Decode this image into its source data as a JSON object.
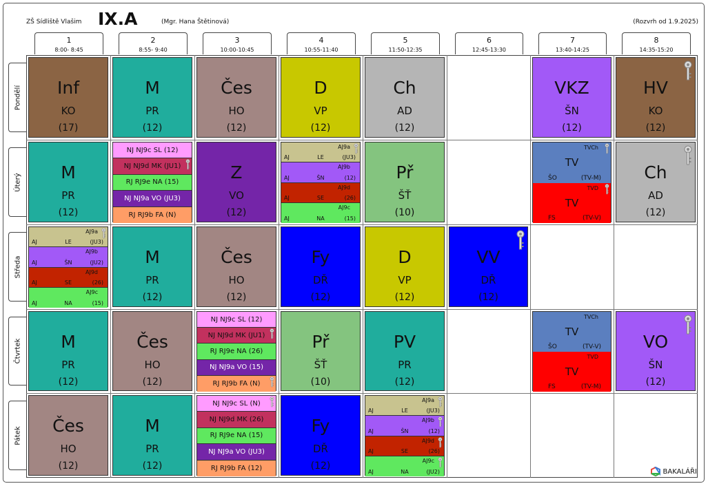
{
  "header": {
    "school": "ZŠ Sídliště Vlašim",
    "class_name": "IX.A",
    "teacher": "(Mgr. Hana Štětinová)",
    "valid_from": "(Rozvrh od 1.9.2025)"
  },
  "periods": [
    {
      "num": "1",
      "time": "8:00- 8:45"
    },
    {
      "num": "2",
      "time": "8:55- 9:40"
    },
    {
      "num": "3",
      "time": "10:00-10:45"
    },
    {
      "num": "4",
      "time": "10:55-11:40"
    },
    {
      "num": "5",
      "time": "11:50-12:35"
    },
    {
      "num": "6",
      "time": "12:45-13:30"
    },
    {
      "num": "7",
      "time": "13:40-14:25"
    },
    {
      "num": "8",
      "time": "14:35-15:20"
    }
  ],
  "days": [
    "Pondělí",
    "Úterý",
    "Středa",
    "Čtvrtek",
    "Pátek"
  ],
  "colors": {
    "inf": "#8b6444",
    "m": "#20ad9d",
    "ces": "#a28683",
    "d": "#c8c800",
    "ch": "#b5b5b5",
    "vkz": "#a259f7",
    "z": "#7425a8",
    "pr": "#84c47f",
    "fy": "#0000ff",
    "vv": "#0000ff",
    "tvch": "#5b7fbf",
    "tvd": "#ff0000",
    "aj9a": "#c8c38f",
    "aj9b": "#a259f7",
    "aj9d": "#c22300",
    "aj9c": "#5fe85f",
    "nj9c": "#ff9bff",
    "nj9d": "#c2315e",
    "rj9e": "#5fe85f",
    "nj9a": "#7425a8",
    "rj9b": "#ff9d66"
  },
  "lessons": {
    "po1": {
      "subject": "Inf",
      "teacher": "KO",
      "room": "(17)"
    },
    "po2": {
      "subject": "M",
      "teacher": "PR",
      "room": "(12)"
    },
    "po3": {
      "subject": "Čes",
      "teacher": "HO",
      "room": "(12)"
    },
    "po4": {
      "subject": "D",
      "teacher": "VP",
      "room": "(12)"
    },
    "po5": {
      "subject": "Ch",
      "teacher": "AD",
      "room": "(12)"
    },
    "po7": {
      "subject": "VKZ",
      "teacher": "ŠN",
      "room": "(12)"
    },
    "po8": {
      "subject": "HV",
      "teacher": "KO",
      "room": "(12)"
    },
    "ut1": {
      "subject": "M",
      "teacher": "PR",
      "room": "(12)"
    },
    "ut3": {
      "subject": "Z",
      "teacher": "VO",
      "room": "(12)"
    },
    "ut5": {
      "subject": "Př",
      "teacher": "ŠŤ",
      "room": "(10)"
    },
    "ut8": {
      "subject": "Ch",
      "teacher": "AD",
      "room": "(12)"
    },
    "st2": {
      "subject": "M",
      "teacher": "PR",
      "room": "(12)"
    },
    "st3": {
      "subject": "Čes",
      "teacher": "HO",
      "room": "(12)"
    },
    "st4": {
      "subject": "Fy",
      "teacher": "DŘ",
      "room": "(12)"
    },
    "st5": {
      "subject": "D",
      "teacher": "VP",
      "room": "(12)"
    },
    "st6": {
      "subject": "VV",
      "teacher": "DŘ",
      "room": "(12)"
    },
    "ct1": {
      "subject": "M",
      "teacher": "PR",
      "room": "(12)"
    },
    "ct2": {
      "subject": "Čes",
      "teacher": "HO",
      "room": "(12)"
    },
    "ct4": {
      "subject": "Př",
      "teacher": "ŠŤ",
      "room": "(10)"
    },
    "ct5": {
      "subject": "PV",
      "teacher": "PR",
      "room": "(12)"
    },
    "ct8": {
      "subject": "VO",
      "teacher": "ŠN",
      "room": "(12)"
    },
    "pa1": {
      "subject": "Čes",
      "teacher": "HO",
      "room": "(12)"
    },
    "pa2": {
      "subject": "M",
      "teacher": "PR",
      "room": "(12)"
    },
    "pa4": {
      "subject": "Fy",
      "teacher": "DŘ",
      "room": "(12)"
    }
  },
  "lang_ut2": [
    "NJ NJ9c SL (12)",
    "NJ NJ9d MK (JU1)",
    "RJ RJ9e NA (15)",
    "NJ NJ9a VO (JU3)",
    "RJ RJ9b FA (N)"
  ],
  "lang_ct3": [
    "NJ NJ9c SL (12)",
    "NJ NJ9d MK (JU1)",
    "RJ RJ9e NA (26)",
    "NJ NJ9a VO (15)",
    "RJ RJ9b FA (N)"
  ],
  "lang_pa3": [
    "NJ NJ9c SL (N)",
    "NJ NJ9d MK (26)",
    "RJ RJ9e NA (15)",
    "NJ NJ9a VO (JU3)",
    "RJ RJ9b FA (12)"
  ],
  "aj_ut4": [
    {
      "group": "AJ9a",
      "subject": "AJ",
      "teacher": "LE",
      "room": "(JU3)"
    },
    {
      "group": "AJ9b",
      "subject": "AJ",
      "teacher": "ŠN",
      "room": "(12)"
    },
    {
      "group": "AJ9d",
      "subject": "AJ",
      "teacher": "SE",
      "room": "(26)"
    },
    {
      "group": "AJ9c",
      "subject": "AJ",
      "teacher": "NA",
      "room": "(15)"
    }
  ],
  "aj_st1": [
    {
      "group": "AJ9a",
      "subject": "AJ",
      "teacher": "LE",
      "room": "(JU3)"
    },
    {
      "group": "AJ9b",
      "subject": "AJ",
      "teacher": "ŠN",
      "room": "(JU2)"
    },
    {
      "group": "AJ9d",
      "subject": "AJ",
      "teacher": "SE",
      "room": "(26)"
    },
    {
      "group": "AJ9c",
      "subject": "AJ",
      "teacher": "NA",
      "room": "(15)"
    }
  ],
  "aj_pa5": [
    {
      "group": "AJ9a",
      "subject": "AJ",
      "teacher": "LE",
      "room": "(JU3)"
    },
    {
      "group": "AJ9b",
      "subject": "AJ",
      "teacher": "ŠN",
      "room": "(12)"
    },
    {
      "group": "AJ9d",
      "subject": "AJ",
      "teacher": "SE",
      "room": "(26)"
    },
    {
      "group": "AJ9c",
      "subject": "AJ",
      "teacher": "NA",
      "room": "(JU2)"
    }
  ],
  "tv_ut7": [
    {
      "group": "TVCh",
      "subject": "TV",
      "teacher": "ŠO",
      "room": "(TV-M)"
    },
    {
      "group": "TVD",
      "subject": "TV",
      "teacher": "FS",
      "room": "(TV-V)"
    }
  ],
  "tv_ct7": [
    {
      "group": "TVCh",
      "subject": "TV",
      "teacher": "ŠO",
      "room": "(TV-V)"
    },
    {
      "group": "TVD",
      "subject": "TV",
      "teacher": "FS",
      "room": "(TV-M)"
    }
  ],
  "brand": "BAKALÁŘI"
}
